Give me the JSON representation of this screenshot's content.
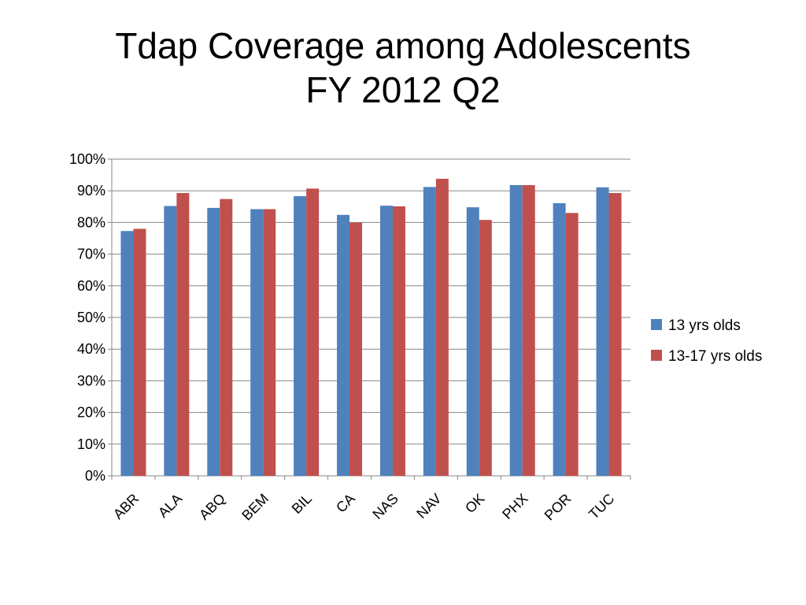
{
  "slide": {
    "title_line1": "Tdap Coverage among Adolescents",
    "title_line2": "FY 2012 Q2"
  },
  "chart_data": {
    "type": "bar",
    "categories": [
      "ABR",
      "ALA",
      "ABQ",
      "BEM",
      "BIL",
      "CA",
      "NAS",
      "NAV",
      "OK",
      "PHX",
      "POR",
      "TUC"
    ],
    "series": [
      {
        "name": "13 yrs olds",
        "color": "#4F81BD",
        "values": [
          77.3,
          85.2,
          84.6,
          84.2,
          88.3,
          82.4,
          85.3,
          91.2,
          84.8,
          91.8,
          86.1,
          91.1
        ]
      },
      {
        "name": "13-17 yrs olds",
        "color": "#C0504D",
        "values": [
          78.0,
          89.3,
          87.4,
          84.2,
          90.7,
          80.0,
          85.1,
          93.8,
          80.8,
          91.8,
          83.0,
          89.3
        ]
      }
    ],
    "yticks": [
      "0%",
      "10%",
      "20%",
      "30%",
      "40%",
      "50%",
      "60%",
      "70%",
      "80%",
      "90%",
      "100%"
    ],
    "ylim": [
      0,
      100
    ],
    "grid": true,
    "legend_position": "right"
  }
}
